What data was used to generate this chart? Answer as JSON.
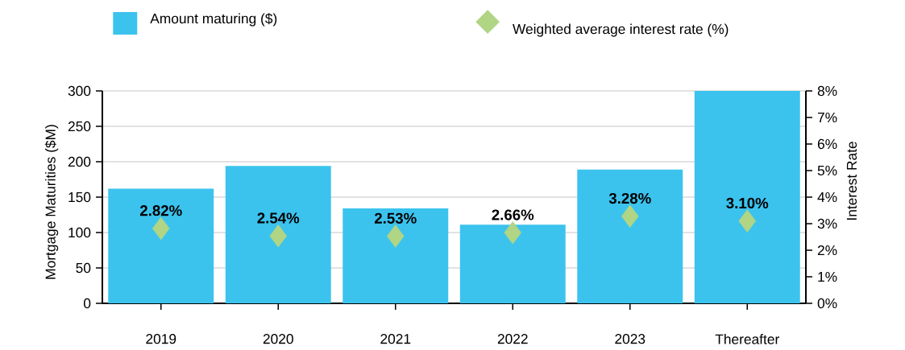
{
  "chart_data": {
    "type": "bar",
    "categories": [
      "2019",
      "2020",
      "2021",
      "2022",
      "2023",
      "Thereafter"
    ],
    "ylabel": "Mortgage Maturities ($M)",
    "y2label": "Interest Rate",
    "ylim": [
      0,
      300
    ],
    "yticks": [
      0,
      50,
      100,
      150,
      200,
      250,
      300
    ],
    "y2lim": [
      0,
      8
    ],
    "y2ticks": [
      {
        "value": 0,
        "label": "0%"
      },
      {
        "value": 1,
        "label": "1%"
      },
      {
        "value": 2,
        "label": "2%"
      },
      {
        "value": 3,
        "label": "3%"
      },
      {
        "value": 4,
        "label": "4%"
      },
      {
        "value": 5,
        "label": "5%"
      },
      {
        "value": 6,
        "label": "6%"
      },
      {
        "value": 7,
        "label": "7%"
      },
      {
        "value": 8,
        "label": "8%"
      }
    ],
    "grid": "y",
    "legend": "top",
    "series": [
      {
        "name": "Amount  maturing ($)",
        "color": "#3bc3ee",
        "values": [
          162,
          194,
          134,
          111,
          189,
          300
        ]
      },
      {
        "name": "Weighted average interest rate (%)",
        "type": "scatter",
        "axis": "y2",
        "marker": "diamond",
        "color": "#b0d585",
        "values": [
          2.82,
          2.54,
          2.53,
          2.66,
          3.28,
          3.1
        ],
        "value_labels": [
          "2.82%",
          "2.54%",
          "2.53%",
          "2.66%",
          "3.28%",
          "3.10%"
        ]
      }
    ]
  }
}
